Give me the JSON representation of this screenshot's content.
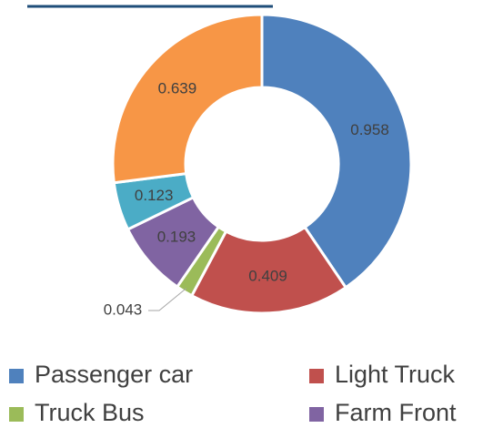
{
  "chart_data": {
    "type": "donut",
    "categories": [
      "Passenger car",
      "Light Truck",
      "Truck Bus",
      "Farm Front",
      null,
      null
    ],
    "values": [
      0.958,
      0.409,
      0.043,
      0.193,
      0.123,
      0.639
    ],
    "colors": [
      "#4f81bd",
      "#c0504d",
      "#9bbb59",
      "#8064a2",
      "#4bacc6",
      "#f79646"
    ],
    "legend": "bottom"
  }
}
